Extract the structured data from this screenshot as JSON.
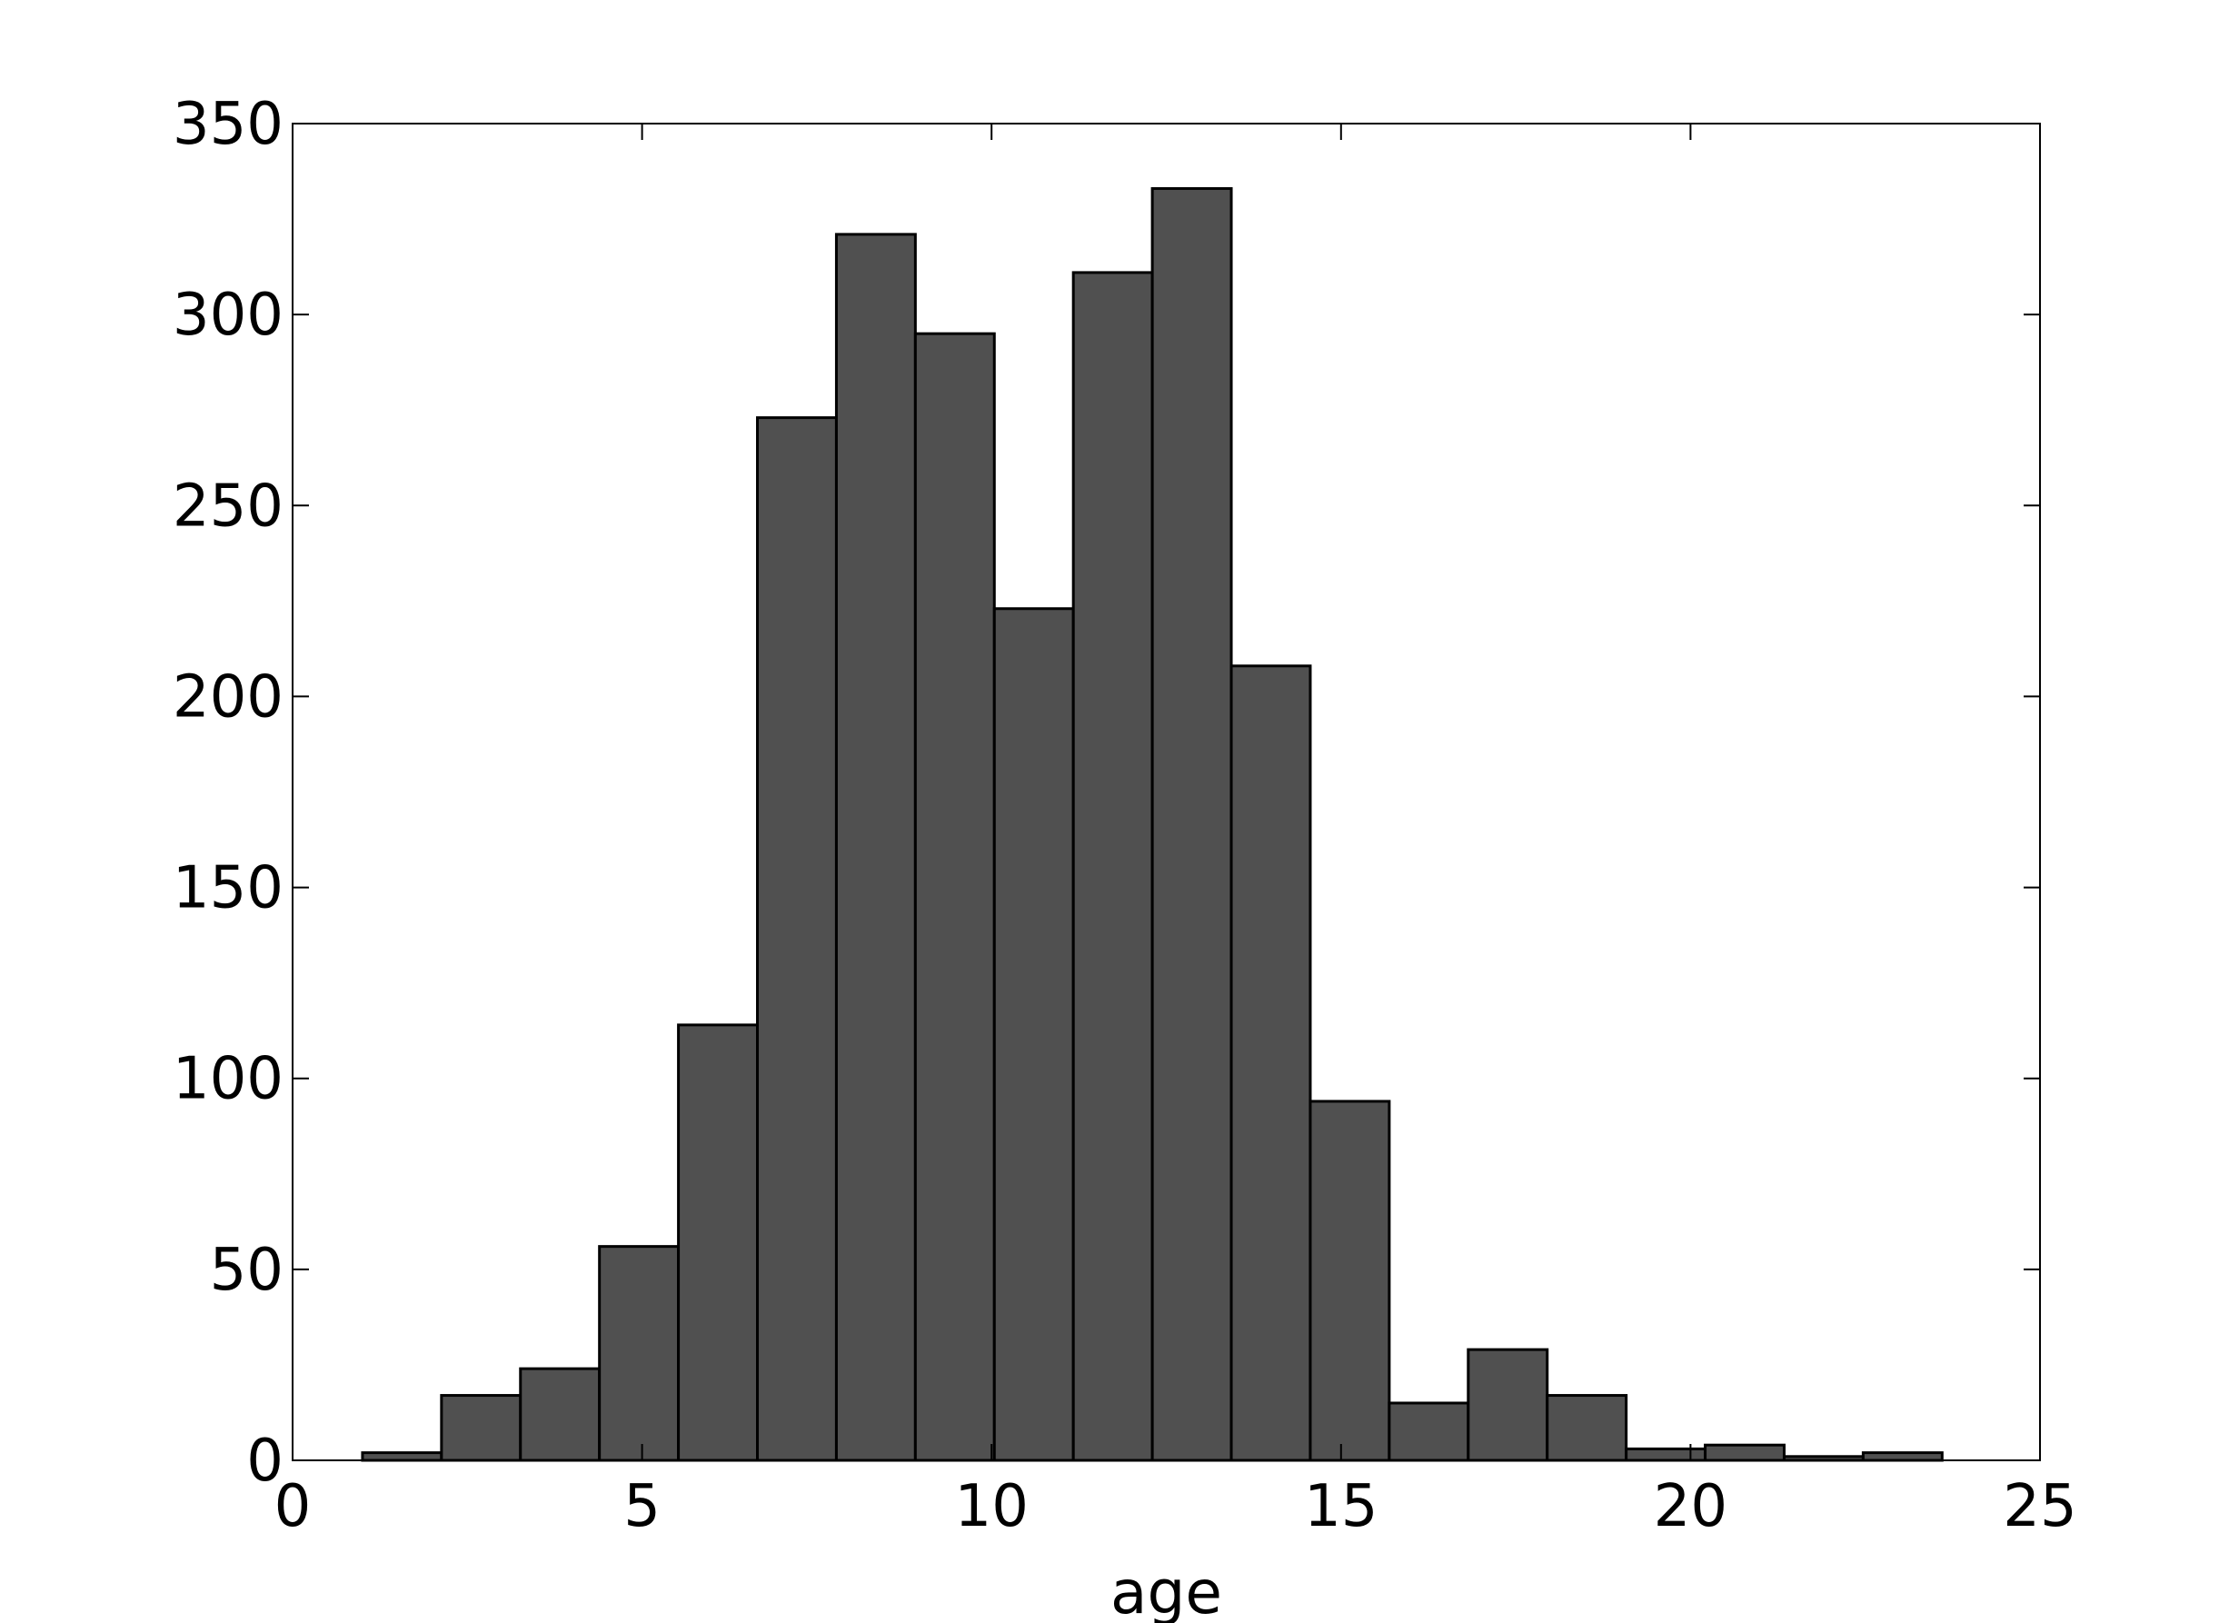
{
  "chart_data": {
    "type": "bar",
    "title": "",
    "xlabel": "age",
    "ylabel": "",
    "xlim": [
      0,
      25
    ],
    "ylim": [
      0,
      350
    ],
    "xticks": [
      0,
      5,
      10,
      15,
      20,
      25
    ],
    "yticks": [
      0,
      50,
      100,
      150,
      200,
      250,
      300,
      350
    ],
    "xtick_labels": [
      "0",
      "5",
      "10",
      "15",
      "20",
      "25"
    ],
    "ytick_labels": [
      "0",
      "50",
      "100",
      "150",
      "200",
      "250",
      "300",
      "350"
    ],
    "grid": false,
    "bar_color": "#505050",
    "edge_color": "#000000",
    "bin_edges": [
      1.0,
      2.13,
      3.26,
      4.39,
      5.52,
      6.65,
      7.78,
      8.91,
      10.04,
      11.17,
      12.3,
      13.43,
      14.56,
      15.69,
      16.82,
      17.95,
      19.08,
      20.21,
      21.34,
      22.47,
      23.6
    ],
    "values": [
      2,
      17,
      24,
      56,
      114,
      273,
      321,
      295,
      223,
      311,
      333,
      208,
      94,
      15,
      29,
      17,
      3,
      4,
      1,
      2
    ]
  }
}
